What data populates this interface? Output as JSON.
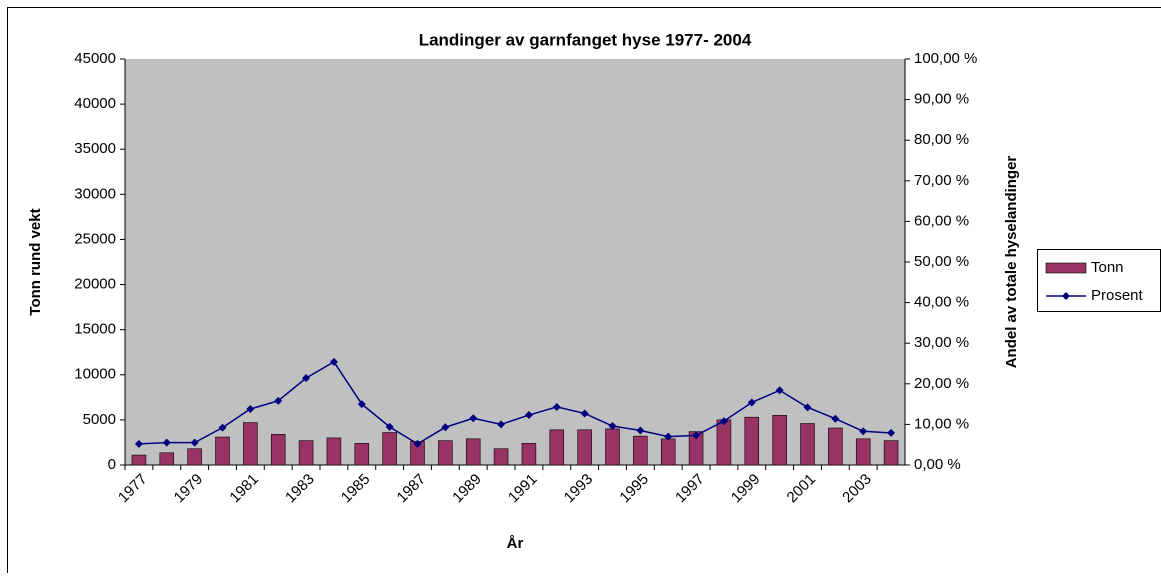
{
  "chart_data": {
    "type": "bar_line",
    "title": "Landinger av garnfanget hyse 1977- 2004",
    "x_label": "År",
    "y_label": "Tonn rund vekt",
    "y2_label": "Andel av totale hyselandinger",
    "categories": [
      "1977",
      null,
      "1979",
      null,
      "1981",
      null,
      "1983",
      null,
      "1985",
      null,
      "1987",
      null,
      "1989",
      null,
      "1991",
      null,
      "1993",
      null,
      "1995",
      null,
      "1997",
      null,
      "1999",
      null,
      "2001",
      null,
      "2003",
      null
    ],
    "ylim": [
      0,
      45000
    ],
    "yticks": [
      0,
      5000,
      10000,
      15000,
      20000,
      25000,
      30000,
      35000,
      40000,
      45000
    ],
    "y2lim": [
      0,
      100
    ],
    "y2ticks": [
      {
        "value": 0,
        "label": "0,00 %"
      },
      {
        "value": 10,
        "label": "10,00 %"
      },
      {
        "value": 20,
        "label": "20,00 %"
      },
      {
        "value": 30,
        "label": "30,00 %"
      },
      {
        "value": 40,
        "label": "40,00 %"
      },
      {
        "value": 50,
        "label": "50,00 %"
      },
      {
        "value": 60,
        "label": "60,00 %"
      },
      {
        "value": 70,
        "label": "70,00 %"
      },
      {
        "value": 80,
        "label": "80,00 %"
      },
      {
        "value": 90,
        "label": "90,00 %"
      },
      {
        "value": 100,
        "label": "100,00 %"
      }
    ],
    "plot_background": "#c0c0c0",
    "legend": "right",
    "series": [
      {
        "name": "Tonn",
        "type": "bar",
        "color": "#993366",
        "values": [
          1100,
          1350,
          1800,
          3100,
          4700,
          3400,
          2700,
          3000,
          2400,
          3600,
          2600,
          2700,
          2900,
          1800,
          2400,
          3900,
          3900,
          4000,
          3200,
          2900,
          3700,
          5000,
          5300,
          5500,
          4600,
          4100,
          2900,
          2700
        ]
      },
      {
        "name": "Prosent",
        "type": "line",
        "color": "#000080",
        "axis": "y2",
        "values": [
          5.2,
          5.5,
          5.5,
          9.2,
          13.8,
          15.8,
          21.4,
          25.4,
          15.0,
          9.4,
          5.2,
          9.3,
          11.5,
          10.0,
          12.3,
          14.3,
          12.7,
          9.6,
          8.5,
          7.0,
          7.3,
          10.8,
          15.4,
          18.4,
          14.2,
          11.4,
          8.3,
          7.9
        ]
      }
    ]
  }
}
